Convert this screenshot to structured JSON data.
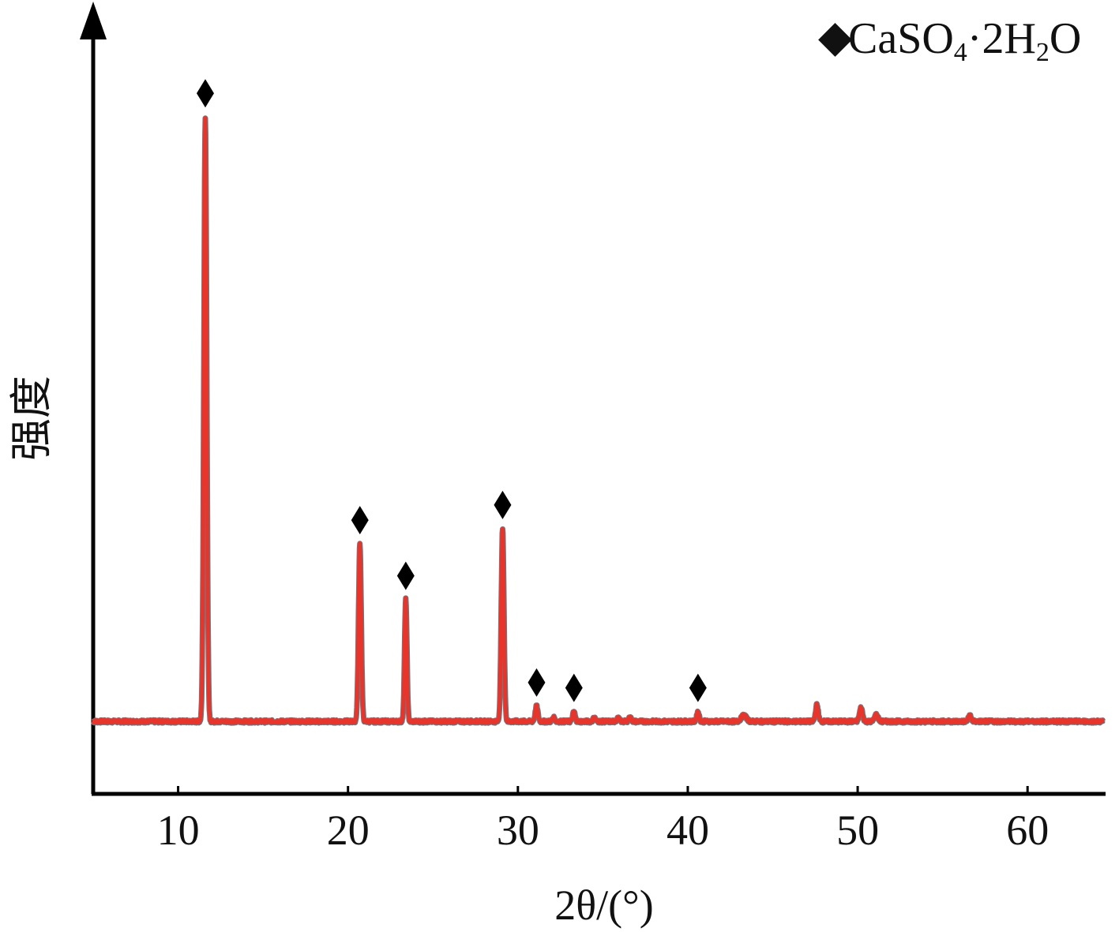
{
  "chart_data": {
    "type": "line",
    "title": "",
    "xlabel": "2θ/(°)",
    "ylabel": "强度",
    "xlim": [
      5,
      64.5
    ],
    "ylim": [
      0,
      1
    ],
    "x_ticks": [
      10,
      20,
      30,
      40,
      50,
      60
    ],
    "y_ticks": [],
    "grid": false,
    "legend_position": "top-right",
    "legend": {
      "marker": "◆",
      "parts": [
        "CaSO",
        "4",
        "·2H",
        "2",
        "O"
      ]
    },
    "colors": {
      "line": "#e8352b",
      "line_shadow": "#6b7a84",
      "marker": "#000000",
      "axis": "#000000"
    },
    "series": [
      {
        "name": "CaSO4·2H2O",
        "baseline": 0.095,
        "peaks": [
          {
            "x": 11.6,
            "y": 0.888,
            "w": 0.085,
            "marked": true
          },
          {
            "x": 20.7,
            "y": 0.328,
            "w": 0.08,
            "marked": true
          },
          {
            "x": 23.4,
            "y": 0.255,
            "w": 0.07,
            "marked": true
          },
          {
            "x": 29.1,
            "y": 0.348,
            "w": 0.08,
            "marked": true
          },
          {
            "x": 31.1,
            "y": 0.115,
            "w": 0.08,
            "marked": true
          },
          {
            "x": 33.3,
            "y": 0.108,
            "w": 0.07,
            "marked": true
          },
          {
            "x": 40.6,
            "y": 0.108,
            "w": 0.07,
            "marked": true
          },
          {
            "x": 32.1,
            "y": 0.1,
            "w": 0.07,
            "marked": false
          },
          {
            "x": 34.5,
            "y": 0.1,
            "w": 0.07,
            "marked": false
          },
          {
            "x": 35.9,
            "y": 0.099,
            "w": 0.08,
            "marked": false
          },
          {
            "x": 36.6,
            "y": 0.1,
            "w": 0.08,
            "marked": false
          },
          {
            "x": 43.3,
            "y": 0.103,
            "w": 0.15,
            "marked": false
          },
          {
            "x": 47.6,
            "y": 0.117,
            "w": 0.08,
            "marked": false
          },
          {
            "x": 50.2,
            "y": 0.113,
            "w": 0.09,
            "marked": false
          },
          {
            "x": 51.1,
            "y": 0.104,
            "w": 0.1,
            "marked": false
          },
          {
            "x": 56.6,
            "y": 0.103,
            "w": 0.08,
            "marked": false
          }
        ]
      }
    ]
  }
}
